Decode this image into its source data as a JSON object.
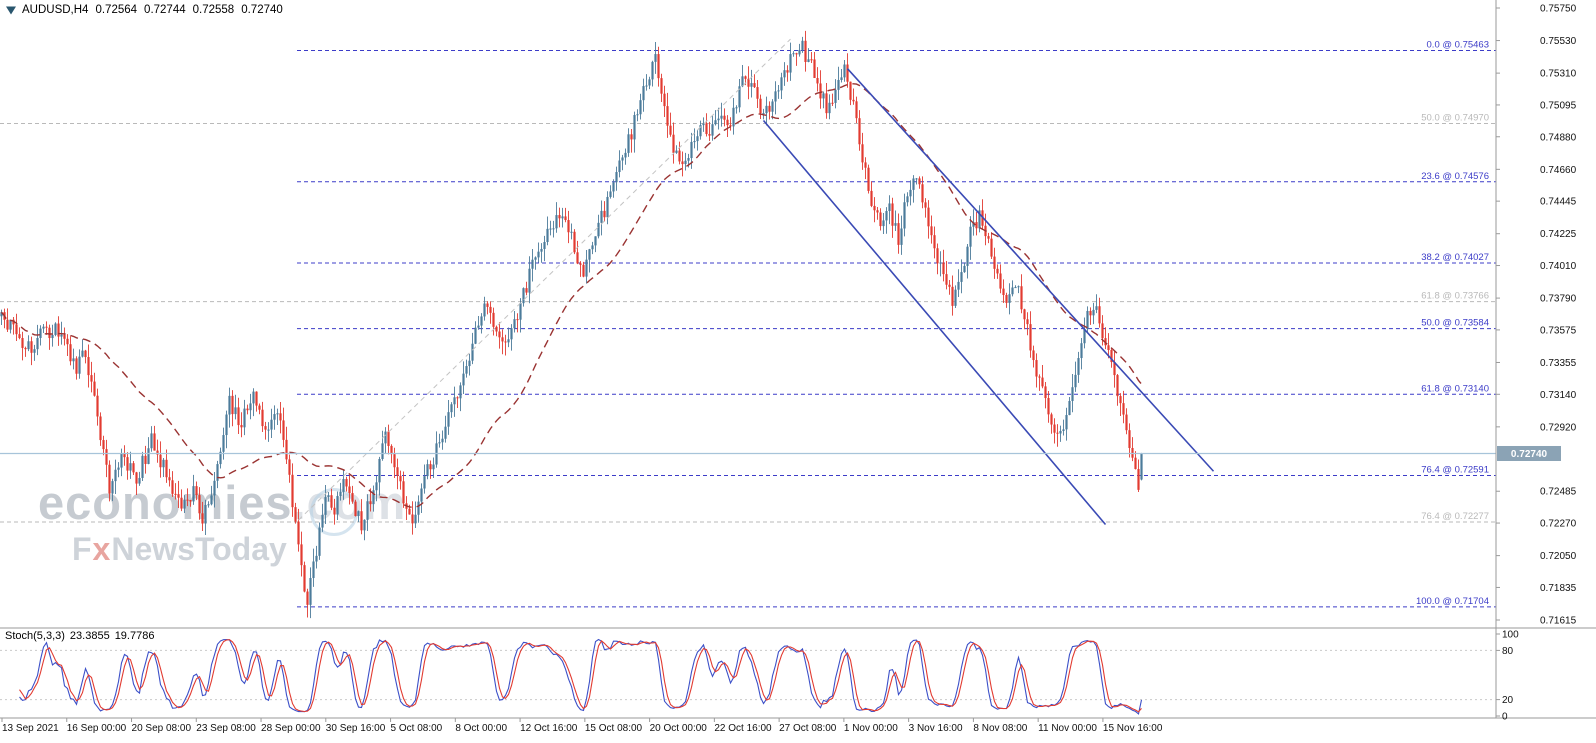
{
  "header": {
    "symbol_tf": "AUDUSD,H4",
    "open": "0.72564",
    "high": "0.72744",
    "low": "0.72558",
    "close": "0.72740"
  },
  "watermark": {
    "brand": "economies",
    "brand_suffix": ".com",
    "tagline_f": "F",
    "tagline_x": "x",
    "tagline_rest": "NewsToday"
  },
  "stoch_header": {
    "name": "Stoch(5,3,3)",
    "main": "23.3855",
    "signal": "19.7786"
  },
  "chart_data": {
    "type": "candlestick",
    "symbol": "AUDUSD",
    "timeframe": "H4",
    "current_bar": {
      "open": 0.72564,
      "high": 0.72744,
      "low": 0.72558,
      "close": 0.7274
    },
    "current_price": 0.7274,
    "y_axis": {
      "min": 0.71615,
      "max": 0.7575,
      "ticks": [
        "0.75750",
        "0.75530",
        "0.75310",
        "0.75095",
        "0.74880",
        "0.74660",
        "0.74445",
        "0.74225",
        "0.74010",
        "0.73790",
        "0.73575",
        "0.73355",
        "0.73140",
        "0.72920",
        "0.72485",
        "0.72270",
        "0.72050",
        "0.71835",
        "0.71615"
      ]
    },
    "x_axis": {
      "labels": [
        "13 Sep 2021",
        "16 Sep 00:00",
        "20 Sep 08:00",
        "23 Sep 08:00",
        "28 Sep 00:00",
        "30 Sep 16:00",
        "5 Oct 08:00",
        "8 Oct 00:00",
        "12 Oct 16:00",
        "15 Oct 08:00",
        "20 Oct 00:00",
        "22 Oct 16:00",
        "27 Oct 08:00",
        "1 Nov 00:00",
        "3 Nov 16:00",
        "8 Nov 08:00",
        "11 Nov 00:00",
        "15 Nov 16:00"
      ]
    },
    "colors": {
      "bull": "#4c7c9b",
      "bear": "#e23b31",
      "ma": "#9a3332",
      "fib_blue": "#3c3cc8",
      "fib_gray": "#b9b9b9",
      "channel": "#3a4ab5",
      "gray_trend": "#c3c3c3",
      "price_line": "#a7c4da",
      "price_tag_bg": "#8ba3b5",
      "stoch_main": "#3c50c8",
      "stoch_signal": "#e23b31",
      "axis_border": "#9a9a9a",
      "stoch_level": "#c9c9c9"
    },
    "fib_levels": [
      {
        "label": "0.0 @ 0.75463",
        "price": 0.75463,
        "set": "blue"
      },
      {
        "label": "50.0 @ 0.74970",
        "price": 0.7497,
        "set": "gray"
      },
      {
        "label": "23.6 @ 0.74576",
        "price": 0.74576,
        "set": "blue"
      },
      {
        "label": "38.2 @ 0.74027",
        "price": 0.74027,
        "set": "blue"
      },
      {
        "label": "61.8 @ 0.73766",
        "price": 0.73766,
        "set": "gray"
      },
      {
        "label": "50.0 @ 0.73584",
        "price": 0.73584,
        "set": "blue"
      },
      {
        "label": "61.8 @ 0.73140",
        "price": 0.7314,
        "set": "blue"
      },
      {
        "label": "76.4 @ 0.72591",
        "price": 0.72591,
        "set": "blue"
      },
      {
        "label": "76.4 @ 0.72277",
        "price": 0.72277,
        "set": "gray"
      },
      {
        "label": "100.0 @ 0.71704",
        "price": 0.71704,
        "set": "blue"
      }
    ],
    "trendlines": [
      {
        "i1": 254,
        "p1": 0.7499,
        "i2": 368,
        "p2": 0.7226,
        "style": "channel"
      },
      {
        "i1": 282,
        "p1": 0.7534,
        "i2": 404,
        "p2": 0.7262,
        "style": "channel"
      },
      {
        "i1": 99,
        "p1": 0.7229,
        "i2": 263,
        "p2": 0.7554,
        "style": "gray-dashed"
      }
    ],
    "moving_average": {
      "type": "SMA",
      "period": 40,
      "style": "dashed"
    },
    "candles": {
      "count": 381,
      "price_path": [
        [
          0,
          0.7368
        ],
        [
          6,
          0.7352
        ],
        [
          10,
          0.7345
        ],
        [
          14,
          0.7356
        ],
        [
          18,
          0.7358
        ],
        [
          22,
          0.7342
        ],
        [
          25,
          0.733
        ],
        [
          28,
          0.7342
        ],
        [
          32,
          0.7296
        ],
        [
          36,
          0.725
        ],
        [
          40,
          0.7272
        ],
        [
          45,
          0.7258
        ],
        [
          50,
          0.7282
        ],
        [
          55,
          0.726
        ],
        [
          60,
          0.7238
        ],
        [
          64,
          0.7246
        ],
        [
          67,
          0.7228
        ],
        [
          72,
          0.7262
        ],
        [
          76,
          0.7308
        ],
        [
          80,
          0.7295
        ],
        [
          84,
          0.7312
        ],
        [
          88,
          0.729
        ],
        [
          92,
          0.7306
        ],
        [
          95,
          0.727
        ],
        [
          97,
          0.724
        ],
        [
          100,
          0.72
        ],
        [
          102,
          0.7172
        ],
        [
          105,
          0.721
        ],
        [
          108,
          0.7245
        ],
        [
          111,
          0.7232
        ],
        [
          114,
          0.7255
        ],
        [
          117,
          0.724
        ],
        [
          120,
          0.7226
        ],
        [
          124,
          0.7252
        ],
        [
          128,
          0.7286
        ],
        [
          131,
          0.7268
        ],
        [
          134,
          0.7244
        ],
        [
          137,
          0.7228
        ],
        [
          141,
          0.7258
        ],
        [
          145,
          0.7276
        ],
        [
          149,
          0.7296
        ],
        [
          153,
          0.7318
        ],
        [
          157,
          0.7346
        ],
        [
          161,
          0.7376
        ],
        [
          164,
          0.7358
        ],
        [
          167,
          0.7344
        ],
        [
          171,
          0.7362
        ],
        [
          175,
          0.7388
        ],
        [
          179,
          0.741
        ],
        [
          183,
          0.7428
        ],
        [
          187,
          0.7436
        ],
        [
          191,
          0.7414
        ],
        [
          194,
          0.7396
        ],
        [
          198,
          0.742
        ],
        [
          202,
          0.7444
        ],
        [
          206,
          0.7466
        ],
        [
          210,
          0.7492
        ],
        [
          214,
          0.7518
        ],
        [
          218,
          0.7542
        ],
        [
          221,
          0.7508
        ],
        [
          224,
          0.7478
        ],
        [
          227,
          0.7464
        ],
        [
          230,
          0.7482
        ],
        [
          233,
          0.75
        ],
        [
          236,
          0.7488
        ],
        [
          239,
          0.7502
        ],
        [
          242,
          0.749
        ],
        [
          245,
          0.751
        ],
        [
          248,
          0.753
        ],
        [
          251,
          0.7516
        ],
        [
          254,
          0.75
        ],
        [
          257,
          0.7512
        ],
        [
          260,
          0.7526
        ],
        [
          263,
          0.754
        ],
        [
          266,
          0.7552
        ],
        [
          269,
          0.754
        ],
        [
          272,
          0.7524
        ],
        [
          275,
          0.7506
        ],
        [
          278,
          0.752
        ],
        [
          281,
          0.7534
        ],
        [
          284,
          0.7506
        ],
        [
          287,
          0.7472
        ],
        [
          290,
          0.7444
        ],
        [
          293,
          0.7426
        ],
        [
          296,
          0.7438
        ],
        [
          299,
          0.742
        ],
        [
          302,
          0.7448
        ],
        [
          305,
          0.746
        ],
        [
          308,
          0.744
        ],
        [
          311,
          0.7414
        ],
        [
          314,
          0.7394
        ],
        [
          317,
          0.7376
        ],
        [
          320,
          0.7398
        ],
        [
          323,
          0.7422
        ],
        [
          326,
          0.7436
        ],
        [
          329,
          0.7414
        ],
        [
          332,
          0.739
        ],
        [
          335,
          0.7374
        ],
        [
          338,
          0.739
        ],
        [
          341,
          0.7368
        ],
        [
          344,
          0.734
        ],
        [
          347,
          0.7316
        ],
        [
          350,
          0.7294
        ],
        [
          353,
          0.7286
        ],
        [
          356,
          0.731
        ],
        [
          359,
          0.734
        ],
        [
          362,
          0.7366
        ],
        [
          364,
          0.7376
        ],
        [
          367,
          0.7354
        ],
        [
          370,
          0.733
        ],
        [
          373,
          0.7306
        ],
        [
          376,
          0.728
        ],
        [
          378,
          0.7258
        ],
        [
          379,
          0.725
        ],
        [
          380,
          0.7274
        ]
      ]
    },
    "stochastic": {
      "name": "Stoch(5,3,3)",
      "k": 5,
      "d": 3,
      "slowing": 3,
      "main_value": 23.3855,
      "signal_value": 19.7786,
      "scale": [
        100,
        80,
        20,
        0
      ],
      "level_lines": [
        80,
        20
      ]
    }
  }
}
